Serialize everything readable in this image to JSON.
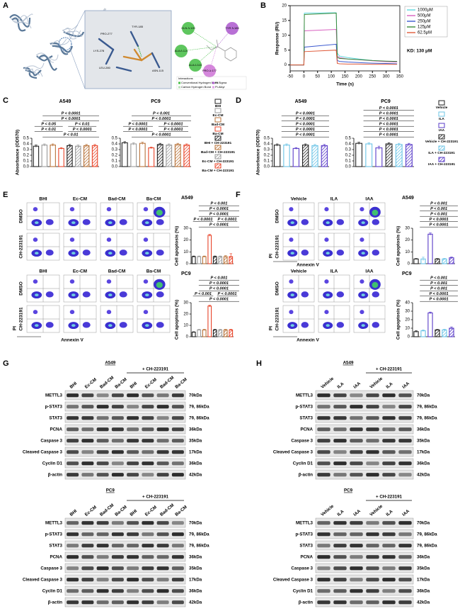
{
  "panels": [
    "A",
    "B",
    "C",
    "D",
    "E",
    "F",
    "G",
    "H"
  ],
  "docking": {
    "residues_3d": [
      "TYR-185",
      "PRO-277",
      "LYS-278",
      "LEU-280",
      "ASN-115"
    ],
    "residues_2d": [
      "GLN A:120",
      "ALA A:119",
      "ALA A:115",
      "PRO A:177",
      "TYR A:185"
    ],
    "legend": [
      "Interactions",
      "Conventional Hydrogen Bond",
      "Carbon Hydrogen Bond",
      "Pi-Sigma",
      "Pi-Alkyl"
    ]
  },
  "chart_data": [
    {
      "type": "line",
      "xlabel": "Time (s)",
      "ylabel": "Response (RU)",
      "annotation": "KD: 130 μM",
      "x": [
        -50,
        -10,
        0,
        2,
        118,
        122,
        130,
        160,
        200,
        250,
        300,
        340
      ],
      "series": [
        {
          "name": "1000μM",
          "color": "#5fd8de",
          "values": [
            0,
            0,
            0,
            17.5,
            17.6,
            4,
            3,
            2.5,
            2,
            1.5,
            1.2,
            1
          ]
        },
        {
          "name": "500μM",
          "color": "#d860c0",
          "values": [
            0,
            0,
            0,
            11.5,
            12,
            3,
            2.5,
            2,
            1.8,
            1.4,
            1.1,
            1
          ]
        },
        {
          "name": "250μM",
          "color": "#3c5ad0",
          "values": [
            0,
            0,
            0,
            6,
            7,
            1.5,
            1.2,
            1,
            0.8,
            0.6,
            0.5,
            0.4
          ]
        },
        {
          "name": "125μM",
          "color": "#3a8a3a",
          "values": [
            0,
            0,
            0,
            17,
            17.5,
            2.5,
            2.2,
            2,
            1.8,
            1.5,
            1.3,
            1.2
          ]
        },
        {
          "name": "62.5μM",
          "color": "#e05a3a",
          "values": [
            0,
            0,
            0,
            4.5,
            5,
            0.5,
            0.4,
            0.3,
            0.3,
            0.2,
            0.2,
            0.2
          ]
        }
      ],
      "xlim": [
        -50,
        350
      ],
      "xticks": [
        -50,
        0,
        50,
        100,
        150,
        200,
        250,
        300,
        350
      ],
      "ylim": [
        -2,
        20
      ],
      "yticks": [
        0,
        5,
        10,
        15,
        20
      ]
    },
    {
      "type": "bar",
      "title": "A549",
      "ylabel": "Absorbance (OD570)",
      "categories": [
        null,
        null,
        null,
        null,
        null,
        null,
        null,
        null
      ],
      "values": [
        0.36,
        0.38,
        0.38,
        0.32,
        0.37,
        0.36,
        0.37,
        0.37
      ],
      "errors": [
        0.02,
        0.02,
        0.02,
        0.015,
        0.02,
        0.02,
        0.02,
        0.02
      ],
      "colors": [
        "#222222",
        "#9a9a9a",
        "#b8733a",
        "#e8452a",
        "#222222",
        "#9a9a9a",
        "#b8733a",
        "#e8452a"
      ],
      "hatched": [
        false,
        false,
        false,
        false,
        true,
        true,
        true,
        true
      ],
      "ylim": [
        0,
        0.5
      ],
      "yticks": [
        {
          "value": 0,
          "label": "0.0"
        },
        0.1,
        0.2,
        0.3,
        0.4,
        0.5
      ],
      "annotations": [
        [
          "P < 0.01"
        ],
        [
          "P < 0.01",
          "P < 0.0001"
        ],
        [
          "P < 0.05",
          "P < 0.01"
        ],
        [
          "P < 0.0001"
        ],
        [
          "P < 0.0001"
        ]
      ]
    },
    {
      "type": "bar",
      "title": "PC9",
      "categories": [
        null,
        null,
        null,
        null,
        null,
        null,
        null,
        null
      ],
      "values": [
        0.42,
        0.4,
        0.41,
        0.33,
        0.39,
        0.38,
        0.39,
        0.38
      ],
      "errors": [
        0.02,
        0.02,
        0.02,
        0.015,
        0.02,
        0.02,
        0.02,
        0.02
      ],
      "colors": [
        "#222222",
        "#9a9a9a",
        "#b8733a",
        "#e8452a",
        "#222222",
        "#9a9a9a",
        "#b8733a",
        "#e8452a"
      ],
      "hatched": [
        false,
        false,
        false,
        false,
        true,
        true,
        true,
        true
      ],
      "ylim": [
        0,
        0.5
      ],
      "yticks": [
        {
          "value": 0,
          "label": "0.0"
        },
        0.1,
        0.2,
        0.3,
        0.4,
        0.5
      ],
      "annotations": [
        [
          "P < 0.0001"
        ],
        [
          "P < 0.0001",
          "P < 0.0001"
        ],
        [
          "P < 0.0001",
          "P < 0.0001"
        ],
        [
          "P < 0.0001"
        ],
        [
          "P < 0.001"
        ]
      ]
    },
    {
      "type": "bar",
      "title": "A549",
      "ylabel": "Absorbance (OD570)",
      "categories": [
        null,
        null,
        null,
        null,
        null,
        null
      ],
      "values": [
        0.38,
        0.38,
        0.32,
        0.38,
        0.37,
        0.37
      ],
      "errors": [
        0.02,
        0.02,
        0.015,
        0.02,
        0.02,
        0.02
      ],
      "colors": [
        "#222222",
        "#6cc4e6",
        "#5a3cc8",
        "#222222",
        "#6cc4e6",
        "#5a3cc8"
      ],
      "hatched": [
        false,
        false,
        false,
        true,
        true,
        true
      ],
      "ylim": [
        0,
        0.5
      ],
      "yticks": [
        {
          "value": 0,
          "label": "0.0"
        },
        0.1,
        0.2,
        0.3,
        0.4,
        0.5
      ],
      "annotations": [
        [
          "P < 0.0001"
        ],
        [
          "P < 0.0001"
        ],
        [
          "P < 0.0001"
        ],
        [
          "P < 0.0001"
        ],
        [
          "P < 0.0001"
        ]
      ]
    },
    {
      "type": "bar",
      "title": "PC9",
      "categories": [
        null,
        null,
        null,
        null,
        null,
        null
      ],
      "values": [
        0.41,
        0.4,
        0.33,
        0.4,
        0.39,
        0.39
      ],
      "errors": [
        0.02,
        0.02,
        0.03,
        0.02,
        0.02,
        0.02
      ],
      "colors": [
        "#222222",
        "#6cc4e6",
        "#5a3cc8",
        "#222222",
        "#6cc4e6",
        "#5a3cc8"
      ],
      "hatched": [
        false,
        false,
        false,
        true,
        true,
        true
      ],
      "ylim": [
        0,
        0.5
      ],
      "yticks": [
        {
          "value": 0,
          "label": "0.0"
        },
        0.1,
        0.2,
        0.3,
        0.4,
        0.5
      ],
      "annotations": [
        [
          "P < 0.0001"
        ],
        [
          "P < 0.0001"
        ],
        [
          "P < 0.0001"
        ],
        [
          "P < 0.0001"
        ],
        [
          "P < 0.0001"
        ],
        [
          "P < 0.0001"
        ]
      ]
    },
    {
      "type": "bar",
      "title": "A549",
      "ylabel": "Cell apoptosis (%)",
      "categories": [
        null,
        null,
        null,
        null,
        null,
        null,
        null,
        null
      ],
      "values": [
        6,
        6,
        6,
        24,
        6,
        6,
        6,
        6
      ],
      "errors": [
        0.5,
        0.5,
        0.5,
        0.8,
        0.5,
        0.5,
        0.8,
        2.5
      ],
      "colors": [
        "#222222",
        "#9a9a9a",
        "#b8733a",
        "#e8452a",
        "#222222",
        "#9a9a9a",
        "#b8733a",
        "#e8452a"
      ],
      "hatched": [
        false,
        false,
        false,
        false,
        true,
        true,
        true,
        true
      ],
      "ylim": [
        0,
        30
      ],
      "yticks": [
        0,
        10,
        20,
        30
      ],
      "annotations": [
        [
          "P < 0.0001"
        ],
        [
          "P < 0.0001",
          "P < 0.0001"
        ],
        [
          "P < 0.0001"
        ],
        [
          "P < 0.0001"
        ],
        [
          "P < 0.001"
        ]
      ]
    },
    {
      "type": "bar",
      "title": "PC9",
      "ylabel": "Cell apoptosis (%)",
      "categories": [
        null,
        null,
        null,
        null,
        null,
        null,
        null,
        null
      ],
      "values": [
        4,
        6,
        6,
        27,
        6,
        6,
        6,
        6
      ],
      "errors": [
        0.4,
        0.5,
        0.5,
        0.8,
        0.5,
        0.5,
        0.5,
        0.5
      ],
      "colors": [
        "#222222",
        "#9a9a9a",
        "#b8733a",
        "#e8452a",
        "#222222",
        "#9a9a9a",
        "#b8733a",
        "#e8452a"
      ],
      "hatched": [
        false,
        false,
        false,
        false,
        true,
        true,
        true,
        true
      ],
      "ylim": [
        0,
        30
      ],
      "yticks": [
        0,
        10,
        20,
        30
      ],
      "annotations": [
        [
          "P < 0.0001"
        ],
        [
          "P < 0.001",
          "P < 0.0001"
        ],
        [
          "P < 0.0001"
        ],
        [
          "P < 0.0001"
        ],
        [
          "P < 0.001"
        ]
      ]
    },
    {
      "type": "bar",
      "title": "A549",
      "ylabel": "Cell apoptosis (%)",
      "categories": [
        null,
        null,
        null,
        null,
        null,
        null
      ],
      "values": [
        4,
        4,
        25,
        4,
        4,
        5
      ],
      "errors": [
        0.4,
        1.5,
        1,
        0.4,
        0.5,
        0.6
      ],
      "colors": [
        "#222222",
        "#6cc4e6",
        "#5a3cc8",
        "#222222",
        "#6cc4e6",
        "#5a3cc8"
      ],
      "hatched": [
        false,
        false,
        false,
        true,
        true,
        true
      ],
      "ylim": [
        0,
        30
      ],
      "yticks": [
        0,
        10,
        20,
        30
      ],
      "annotations": [
        [
          "P < 0.0001"
        ],
        [
          "P < 0.0001"
        ],
        [
          "P < 0.001"
        ],
        [
          "P < 0.001"
        ],
        [
          "P < 0.001"
        ]
      ]
    },
    {
      "type": "bar",
      "title": "PC9",
      "ylabel": "Cell apoptosis (%)",
      "categories": [
        null,
        null,
        null,
        null,
        null,
        null
      ],
      "values": [
        6,
        7,
        28,
        8,
        8,
        10
      ],
      "errors": [
        1,
        1,
        1,
        0.6,
        0.8,
        1.5
      ],
      "colors": [
        "#222222",
        "#6cc4e6",
        "#5a3cc8",
        "#222222",
        "#6cc4e6",
        "#5a3cc8"
      ],
      "hatched": [
        false,
        false,
        false,
        true,
        true,
        true
      ],
      "ylim": [
        0,
        40
      ],
      "yticks": [
        0,
        10,
        20,
        30,
        40
      ],
      "annotations": [
        [
          "P < 0.0001"
        ],
        [
          "P < 0.0001"
        ],
        [
          "P < 0.001"
        ],
        [
          "P < 0.001"
        ],
        [
          "P < 0.001"
        ]
      ]
    }
  ],
  "legend_c": [
    {
      "name": "BHI",
      "color": "#222222",
      "hatched": false
    },
    {
      "name": "Ec-CM",
      "color": "#9a9a9a",
      "hatched": false
    },
    {
      "name": "Bad-CM",
      "color": "#b8733a",
      "hatched": false
    },
    {
      "name": "Ba-CM",
      "color": "#e8452a",
      "hatched": false
    },
    {
      "name": "BHI + CH-223191",
      "color": "#222222",
      "hatched": true
    },
    {
      "name": "Bad-CM + CH-223191",
      "color": "#b8733a",
      "hatched": true
    },
    {
      "name": "Ec-CM + CH-223191",
      "color": "#9a9a9a",
      "hatched": true
    },
    {
      "name": "Ba-CM + CH-223191",
      "color": "#e8452a",
      "hatched": true
    }
  ],
  "legend_d": [
    {
      "name": "Vehicle",
      "color": "#222222",
      "hatched": false
    },
    {
      "name": "ILA",
      "color": "#6cc4e6",
      "hatched": false
    },
    {
      "name": "IAA",
      "color": "#5a3cc8",
      "hatched": false
    },
    {
      "name": "Vehicle + CH-223191",
      "color": "#222222",
      "hatched": true
    },
    {
      "name": "ILA + CH-223191",
      "color": "#6cc4e6",
      "hatched": true
    },
    {
      "name": "IAA + CH-223191",
      "color": "#5a3cc8",
      "hatched": true
    }
  ],
  "flow_e": [
    {
      "columns": [
        "BHI",
        "Ec-CM",
        "Bad-CM",
        "Ba-CM"
      ],
      "rows": [
        "DMSO",
        "CH-223191"
      ]
    },
    {
      "columns": [
        "BHI",
        "Ec-CM",
        "Bad-CM",
        "Ba-CM"
      ],
      "rows": [
        "DMSO",
        "CH-223191"
      ],
      "x_label": "Annexin V",
      "y_label": "PI"
    }
  ],
  "flow_f": [
    {
      "columns": [
        "Vehicle",
        "ILA",
        "IAA"
      ],
      "rows": [
        "DMSO",
        "CH-223191"
      ],
      "x_label": "Annexin V",
      "y_label": "PI"
    },
    {
      "columns": [
        "Vehicle",
        "ILA",
        "IAA"
      ],
      "rows": [
        "DMSO",
        "CH-223191"
      ],
      "x_label": "Annexin V",
      "y_label": "PI"
    }
  ],
  "blots_g": [
    {
      "title": "A549",
      "treatment": "+ CH-223191",
      "lanes": [
        "BHI",
        "Ec-CM",
        "Bad-CM",
        "Ba-CM",
        "BHI",
        "Ec-CM",
        "Bad-CM",
        "Ba-CM"
      ],
      "rows": [
        {
          "protein": "METTL3",
          "size": "70kDa"
        },
        {
          "protein": "p-STAT3",
          "size": "79, 86kDa"
        },
        {
          "protein": "STAT3",
          "size": "79, 86kDa"
        },
        {
          "protein": "PCNA",
          "size": "36kDa"
        },
        {
          "protein": "Caspase 3",
          "size": "35kDa"
        },
        {
          "protein": "Cleaved Caspase 3",
          "size": "17kDa"
        },
        {
          "protein": "Cyclin D1",
          "size": "36kDa"
        },
        {
          "protein": "β-actin",
          "size": "42kDa"
        }
      ]
    },
    {
      "title": "PC9",
      "treatment": "+ CH-223191",
      "lanes": [
        "BHI",
        "Ec-CM",
        "Bad-CM",
        "Ba-CM",
        "BHI",
        "Ec-CM",
        "Bad-CM",
        "Ba-CM"
      ],
      "rows": [
        {
          "protein": "METTL3",
          "size": "70kDa"
        },
        {
          "protein": "p-STAT3",
          "size": "79, 86kDa"
        },
        {
          "protein": "STAT3",
          "size": "79, 86kDa"
        },
        {
          "protein": "PCNA",
          "size": "36kDa"
        },
        {
          "protein": "Caspase 3",
          "size": "35kDa"
        },
        {
          "protein": "Cleaved Caspase 3",
          "size": "17kDa"
        },
        {
          "protein": "Cyclin D1",
          "size": "36kDa"
        },
        {
          "protein": "β-actin",
          "size": "42kDa"
        }
      ]
    }
  ],
  "blots_h": [
    {
      "title": "A549",
      "treatment": "+ CH-223191",
      "lanes": [
        "Vehicle",
        "ILA",
        "IAA",
        "Vehicle",
        "ILA",
        "IAA"
      ],
      "rows": [
        {
          "protein": "METTL3",
          "size": "70kDa"
        },
        {
          "protein": "p-STAT3",
          "size": "79, 86kDa"
        },
        {
          "protein": "STAT3",
          "size": "79, 86kDa"
        },
        {
          "protein": "PCNA",
          "size": "36kDa"
        },
        {
          "protein": "Caspase 3",
          "size": "35kDa"
        },
        {
          "protein": "Cleaved Caspase 3",
          "size": "17kDa"
        },
        {
          "protein": "Cyclin D1",
          "size": "36kDa"
        },
        {
          "protein": "β-actin",
          "size": "42kDa"
        }
      ]
    },
    {
      "title": "PC9",
      "treatment": "+ CH-223191",
      "lanes": [
        "Vehicle",
        "ILA",
        "IAA",
        "Vehicle",
        "ILA",
        "IAA"
      ],
      "rows": [
        {
          "protein": "METTL3",
          "size": "70kDa"
        },
        {
          "protein": "p-STAT3",
          "size": "79, 86kDa"
        },
        {
          "protein": "STAT3",
          "size": "79, 86kDa"
        },
        {
          "protein": "PCNA",
          "size": "36kDa"
        },
        {
          "protein": "Caspase 3",
          "size": "35kDa"
        },
        {
          "protein": "Cleaved Caspase 3",
          "size": "17kDa"
        },
        {
          "protein": "Cyclin D1",
          "size": "36kDa"
        },
        {
          "protein": "β-actin",
          "size": "42kDa"
        }
      ]
    }
  ]
}
